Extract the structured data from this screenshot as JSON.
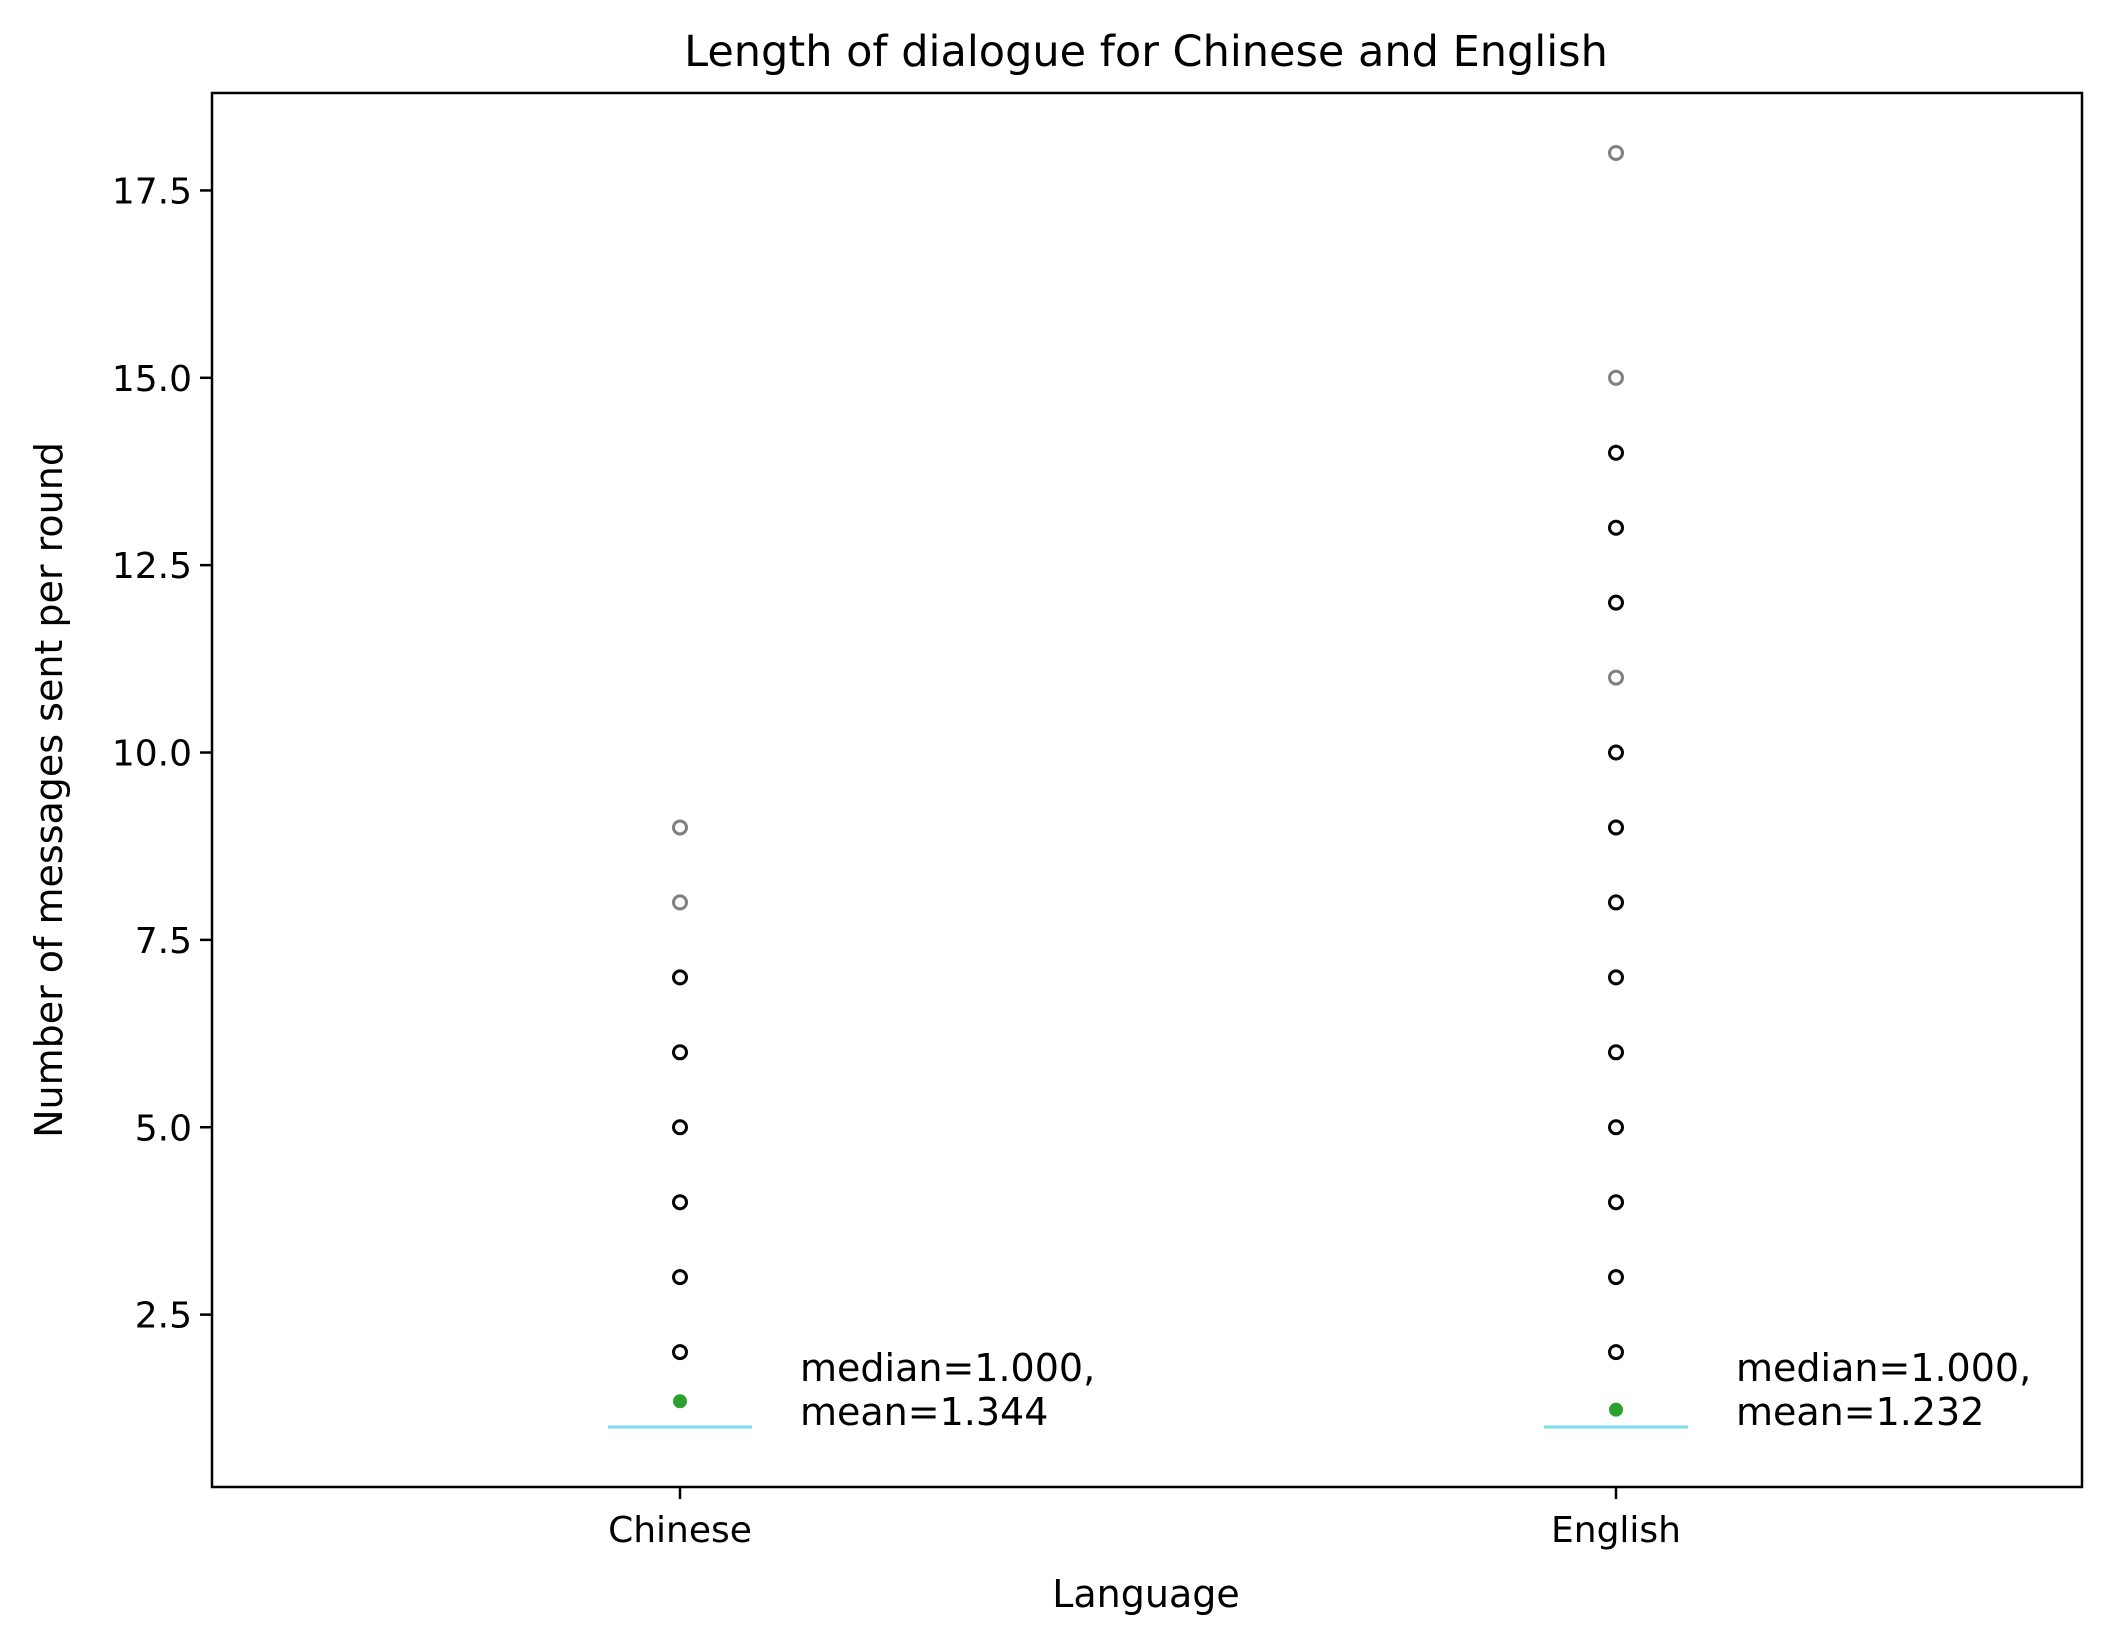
{
  "chart_data": {
    "type": "box",
    "title": "Length of dialogue for Chinese and English",
    "xlabel": "Language",
    "ylabel": "Number of messages sent per round",
    "categories": [
      "Chinese",
      "English"
    ],
    "ylim": [
      0.2,
      18.8
    ],
    "yticks": [
      2.5,
      5.0,
      7.5,
      10.0,
      12.5,
      15.0,
      17.5
    ],
    "ytick_labels": [
      "2.5",
      "5.0",
      "7.5",
      "10.0",
      "12.5",
      "15.0",
      "17.5"
    ],
    "grid": false,
    "median_color": "#7fdbee",
    "mean_color": "#2ca02c",
    "outlier_color_dense": "#000000",
    "outlier_color_sparse": "#808080",
    "series": [
      {
        "median": 1.0,
        "mean": 1.344,
        "outliers": [
          2,
          3,
          4,
          5,
          6,
          7,
          8,
          9
        ],
        "sparse_outliers": [
          8,
          9
        ],
        "annotation": [
          "median=1.000,",
          "mean=1.344"
        ]
      },
      {
        "median": 1.0,
        "mean": 1.232,
        "outliers": [
          2,
          3,
          4,
          5,
          6,
          7,
          8,
          9,
          10,
          11,
          12,
          13,
          14,
          15,
          18
        ],
        "sparse_outliers": [
          11,
          15,
          18
        ],
        "annotation": [
          "median=1.000,",
          "mean=1.232"
        ]
      }
    ]
  }
}
